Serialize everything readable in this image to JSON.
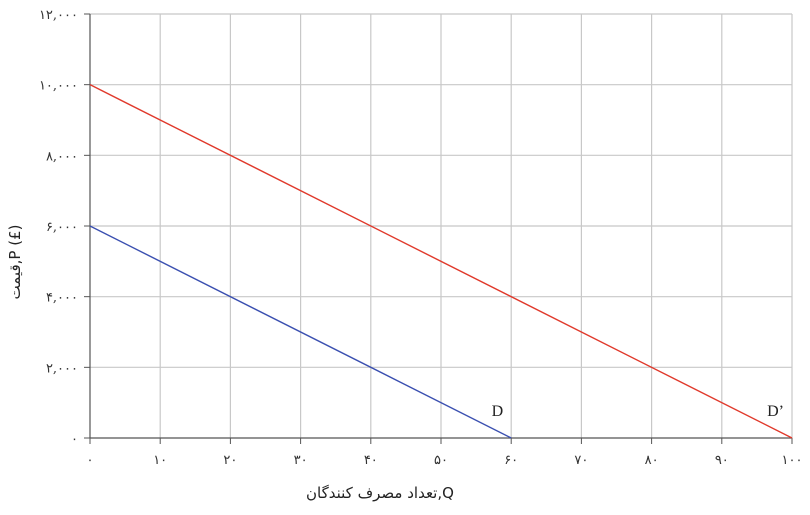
{
  "chart_data": {
    "type": "line",
    "xlabel": "Q,تعداد مصرف کنندگان",
    "ylabel": "قیمت,P (£)",
    "xlim": [
      0,
      100
    ],
    "ylim": [
      0,
      12000
    ],
    "x_ticks": [
      0,
      10,
      20,
      30,
      40,
      50,
      60,
      70,
      80,
      90,
      100
    ],
    "x_tick_labels": [
      "۰",
      "۱۰",
      "۲۰",
      "۳۰",
      "۴۰",
      "۵۰",
      "۶۰",
      "۷۰",
      "۸۰",
      "۹۰",
      "۱۰۰"
    ],
    "y_ticks": [
      0,
      2000,
      4000,
      6000,
      8000,
      10000,
      12000
    ],
    "y_tick_labels": [
      "۰",
      "۲,۰۰۰",
      "۴,۰۰۰",
      "۶,۰۰۰",
      "۸,۰۰۰",
      "۱۰,۰۰۰",
      "۱۲,۰۰۰"
    ],
    "grid": true,
    "series": [
      {
        "name": "D",
        "color": "#3a4fb0",
        "points": [
          [
            0,
            6000
          ],
          [
            60,
            0
          ]
        ]
      },
      {
        "name": "D’",
        "color": "#e0392b",
        "points": [
          [
            0,
            10000
          ],
          [
            100,
            0
          ]
        ]
      }
    ]
  }
}
